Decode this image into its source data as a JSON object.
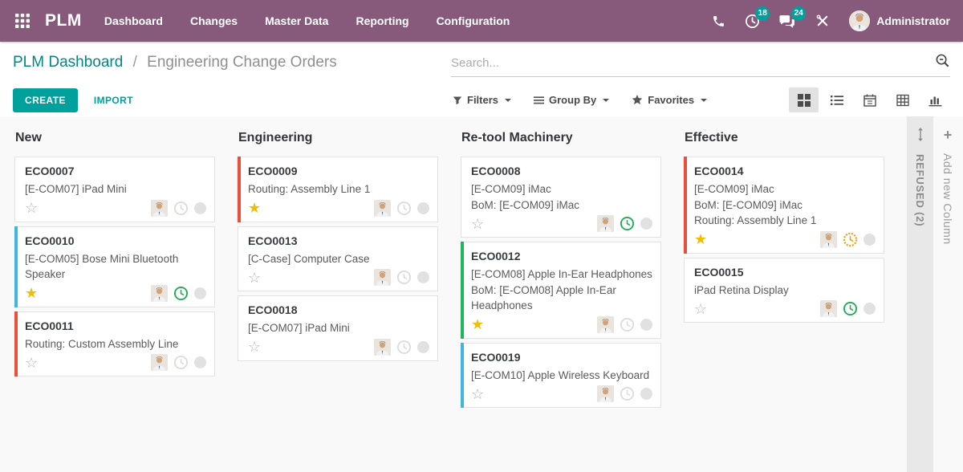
{
  "colors": {
    "topbar": "#875A7B",
    "teal": "#00A09D",
    "breadcrumb_link": "#008784",
    "star_gold": "#efbe0a",
    "accent": {
      "none": "transparent",
      "blue": "#3eb6e0",
      "red": "#e8503a",
      "green": "#21b55c"
    },
    "clock": {
      "gray": "#dcdcdc",
      "green": "#1fae53",
      "orange": "#f2a30f"
    }
  },
  "header": {
    "brand": "PLM",
    "menu": [
      "Dashboard",
      "Changes",
      "Master Data",
      "Reporting",
      "Configuration"
    ],
    "activity_count": "18",
    "message_count": "24",
    "user_name": "Administrator"
  },
  "breadcrumb": {
    "parent": "PLM Dashboard",
    "separator": "/",
    "current": "Engineering Change Orders"
  },
  "search": {
    "placeholder": "Search..."
  },
  "actions": {
    "create": "CREATE",
    "import": "IMPORT"
  },
  "filter_bar": {
    "filters": "Filters",
    "group_by": "Group By",
    "favorites": "Favorites"
  },
  "view_switcher": [
    "kanban",
    "list",
    "calendar",
    "pivot",
    "graph"
  ],
  "board": {
    "columns": [
      {
        "title": "New",
        "cards": [
          {
            "id": "ECO0007",
            "lines": [
              "[E-COM07] iPad Mini"
            ],
            "starred": false,
            "accent": "none",
            "clock": "gray"
          },
          {
            "id": "ECO0010",
            "lines": [
              "[E-COM05] Bose Mini Bluetooth Speaker"
            ],
            "starred": true,
            "accent": "blue",
            "clock": "green"
          },
          {
            "id": "ECO0011",
            "lines": [
              "Routing: Custom Assembly Line"
            ],
            "starred": false,
            "accent": "red",
            "clock": "gray"
          }
        ]
      },
      {
        "title": "Engineering",
        "cards": [
          {
            "id": "ECO0009",
            "lines": [
              "Routing: Assembly Line 1"
            ],
            "starred": true,
            "accent": "red",
            "clock": "gray"
          },
          {
            "id": "ECO0013",
            "lines": [
              "[C-Case] Computer Case"
            ],
            "starred": false,
            "accent": "none",
            "clock": "gray"
          },
          {
            "id": "ECO0018",
            "lines": [
              "[E-COM07] iPad Mini"
            ],
            "starred": false,
            "accent": "none",
            "clock": "gray"
          }
        ]
      },
      {
        "title": "Re-tool Machinery",
        "cards": [
          {
            "id": "ECO0008",
            "lines": [
              "[E-COM09] iMac",
              "BoM: [E-COM09] iMac"
            ],
            "starred": false,
            "accent": "none",
            "clock": "green"
          },
          {
            "id": "ECO0012",
            "lines": [
              "[E-COM08] Apple In-Ear Headphones",
              "BoM: [E-COM08] Apple In-Ear Headphones"
            ],
            "starred": true,
            "accent": "green",
            "clock": "gray"
          },
          {
            "id": "ECO0019",
            "lines": [
              "[E-COM10] Apple Wireless Keyboard"
            ],
            "starred": false,
            "accent": "blue",
            "clock": "gray"
          }
        ]
      },
      {
        "title": "Effective",
        "cards": [
          {
            "id": "ECO0014",
            "lines": [
              "[E-COM09] iMac",
              "BoM: [E-COM09] iMac",
              "Routing: Assembly Line 1"
            ],
            "starred": true,
            "accent": "red",
            "clock": "orange"
          },
          {
            "id": "ECO0015",
            "lines": [
              "iPad Retina Display"
            ],
            "starred": false,
            "accent": "none",
            "clock": "green"
          }
        ]
      }
    ],
    "collapsed_column": "REFUSED (2)",
    "add_column": "Add new Column"
  }
}
